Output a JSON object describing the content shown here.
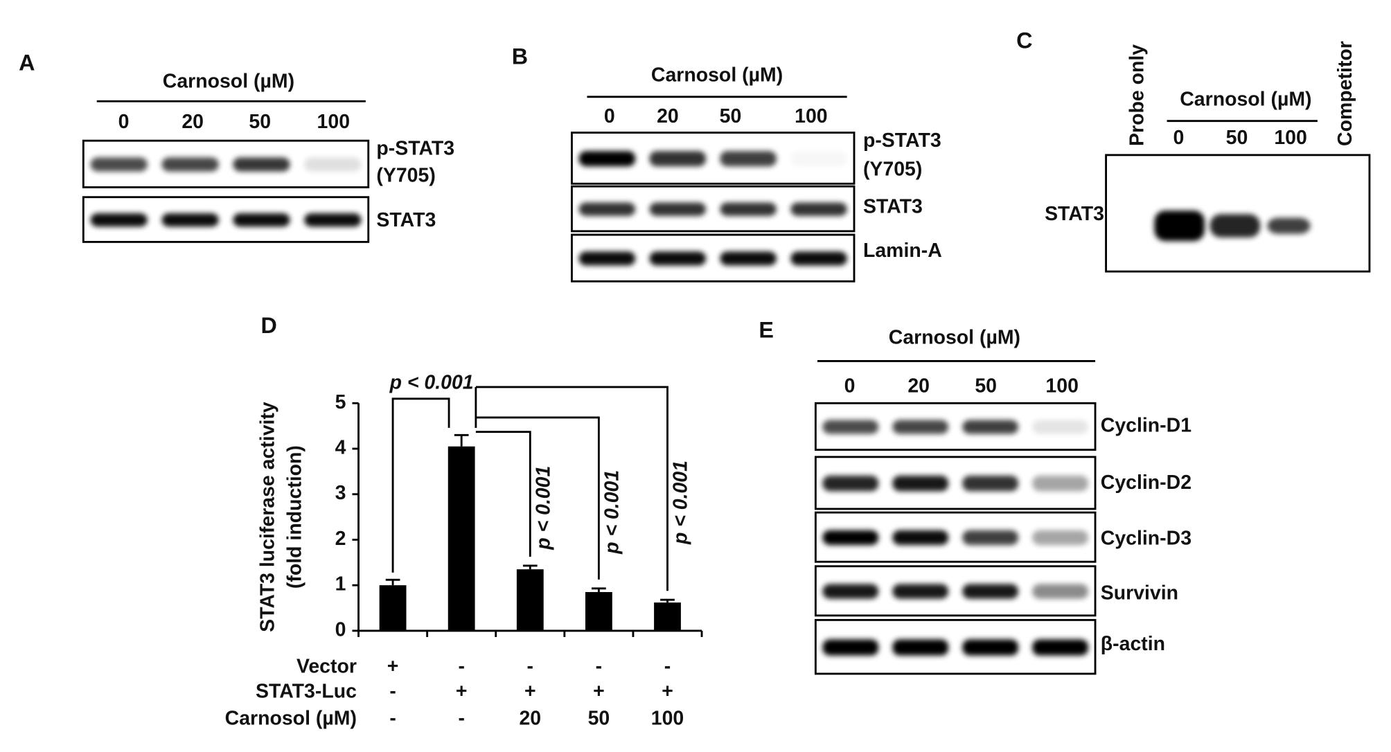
{
  "panel_a": {
    "label": "A",
    "treatment": "Carnosol (µM)",
    "doses": [
      "0",
      "20",
      "50",
      "100"
    ],
    "rows": [
      [
        "p-STAT3",
        "(Y705)"
      ],
      [
        "STAT3"
      ]
    ]
  },
  "panel_b": {
    "label": "B",
    "treatment": "Carnosol (µM)",
    "doses": [
      "0",
      "20",
      "50",
      "100"
    ],
    "rows": [
      [
        "p-STAT3",
        "(Y705)"
      ],
      [
        "STAT3"
      ],
      [
        "Lamin-A"
      ]
    ]
  },
  "panel_c": {
    "label": "C",
    "treatment": "Carnosol (µM)",
    "doses": [
      "0",
      "50",
      "100"
    ],
    "first_lane": "Probe only",
    "last_lane": "Competitor",
    "band": "STAT3"
  },
  "chart_data": {
    "type": "bar",
    "label": "D",
    "ylabel": [
      "STAT3 luciferase activity",
      "(fold induction)"
    ],
    "values": [
      1.0,
      4.05,
      1.35,
      0.85,
      0.62
    ],
    "errors": [
      0.12,
      0.25,
      0.08,
      0.08,
      0.06
    ],
    "color": "#000000",
    "ylim": [
      0,
      5
    ],
    "yticks": [
      0,
      1,
      2,
      3,
      4,
      5
    ],
    "conditions": [
      {
        "name": "Vector",
        "values": [
          "+",
          "-",
          "-",
          "-",
          "-"
        ]
      },
      {
        "name": "STAT3-Luc",
        "values": [
          "-",
          "+",
          "+",
          "+",
          "+"
        ]
      },
      {
        "name": "Carnosol (µM)",
        "values": [
          "-",
          "-",
          "20",
          "50",
          "100"
        ]
      }
    ],
    "annotations": [
      "p < 0.001",
      "p < 0.001",
      "p < 0.001",
      "p < 0.001"
    ]
  },
  "panel_e": {
    "label": "E",
    "treatment": "Carnosol (µM)",
    "doses": [
      "0",
      "20",
      "50",
      "100"
    ],
    "rows": [
      [
        "Cyclin-D1"
      ],
      [
        "Cyclin-D2"
      ],
      [
        "Cyclin-D3"
      ],
      [
        "Survivin"
      ],
      [
        "β-actin"
      ]
    ]
  }
}
